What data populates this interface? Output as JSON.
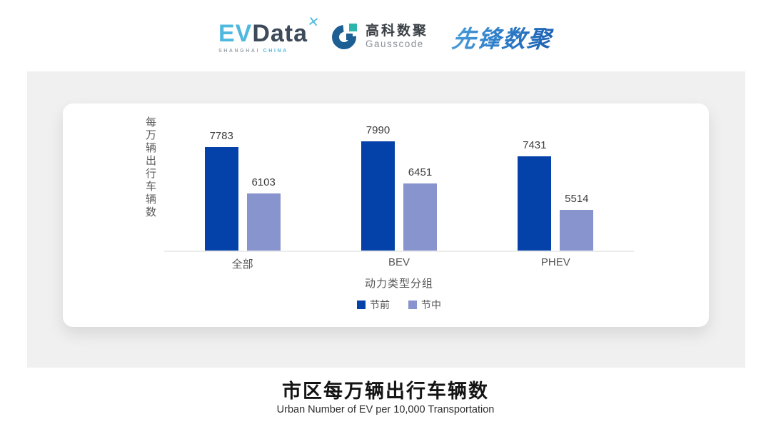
{
  "header": {
    "evdata": {
      "ev": "EV",
      "data": "Data",
      "spark": "✕",
      "sub_shanghai": "SHANGHAI",
      "sub_china": "CHINA"
    },
    "gausscode": {
      "cn": "高科数聚",
      "en": "Gausscode"
    },
    "xianfeng": "先锋数聚"
  },
  "chart_data": {
    "type": "bar",
    "categories": [
      "全部",
      "BEV",
      "PHEV"
    ],
    "series": [
      {
        "name": "节前",
        "color": "#0441a8",
        "values": [
          7783,
          7990,
          7431
        ]
      },
      {
        "name": "节中",
        "color": "#8894ce",
        "values": [
          6103,
          6451,
          5514
        ]
      }
    ],
    "ylabel": "每万辆出行车辆数",
    "xlabel": "动力类型分组",
    "ylim": [
      4000,
      8400
    ],
    "grid": false,
    "legend_position": "bottom",
    "value_labels": true,
    "axis_line_color": "#ececec"
  },
  "footer": {
    "title": "市区每万辆出行车辆数",
    "subtitle": "Urban Number of EV per 10,000 Transportation"
  }
}
